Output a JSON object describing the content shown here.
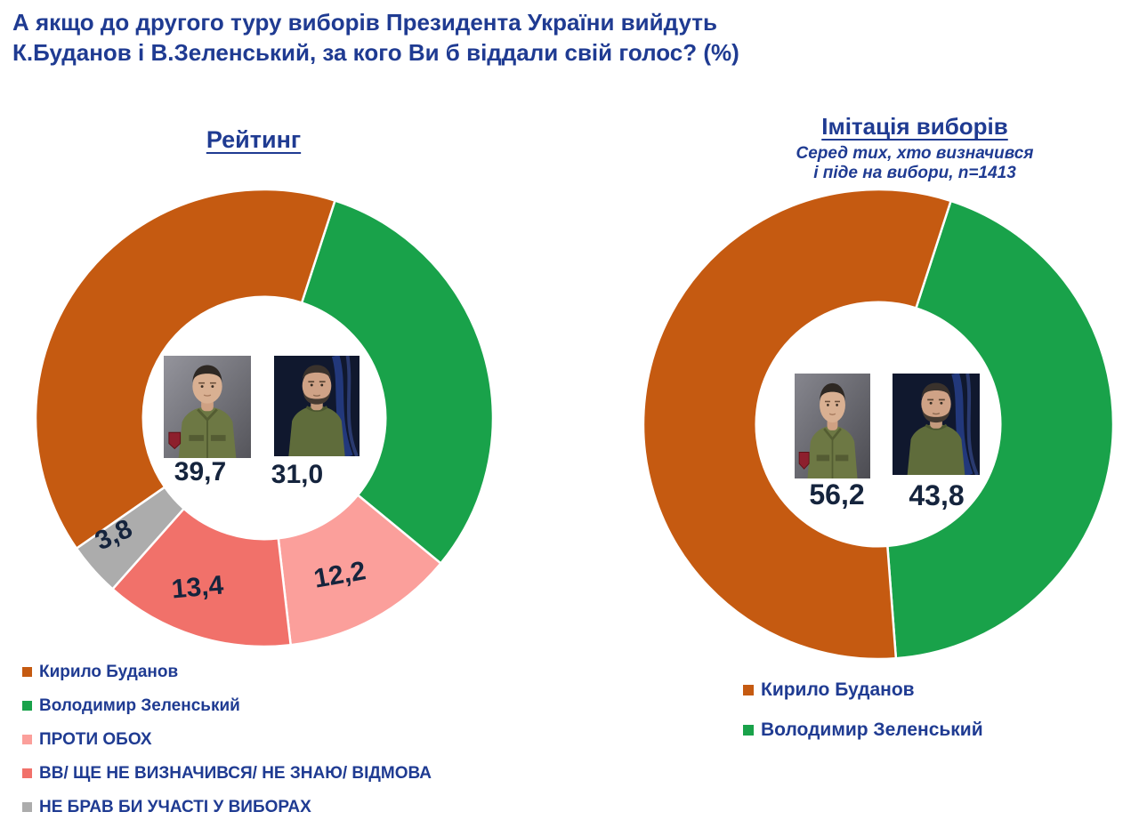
{
  "page": {
    "title_line1": "А якщо до другого туру виборів Президента України вийдуть",
    "title_line2": "К.Буданов і В.Зеленський, за кого Ви б віддали свій голос? (%)"
  },
  "colors": {
    "heading_blue": "#1F3B92",
    "value_navy": "#15243D",
    "budanov_orange": "#C55A11",
    "zelenskyy_green": "#19A24A",
    "against_both_pink": "#FB9F9B",
    "undecided_salmon": "#F1716A",
    "no_participation_gray": "#ACACAC"
  },
  "chart_data": [
    {
      "type": "pie",
      "variant": "donut",
      "title": "Рейтинг",
      "unit": "%",
      "slices": [
        {
          "label": "Кирило Буданов",
          "value": 39.7,
          "display": "39,7",
          "color": "#C55A11"
        },
        {
          "label": "Володимир Зеленський",
          "value": 31.0,
          "display": "31,0",
          "color": "#19A24A"
        },
        {
          "label": "ПРОТИ ОБОХ",
          "value": 12.2,
          "display": "12,2",
          "color": "#FB9F9B"
        },
        {
          "label": "ВВ/ ЩЕ НЕ ВИЗНАЧИВСЯ/ НЕ ЗНАЮ/ ВІДМОВА",
          "value": 13.4,
          "display": "13,4",
          "color": "#F1716A"
        },
        {
          "label": "НЕ БРАВ БИ УЧАСТІ У ВИБОРАХ",
          "value": 3.8,
          "display": "3,8",
          "color": "#ACACAC"
        }
      ],
      "clockwise_order": [
        1,
        2,
        3,
        4,
        0
      ],
      "start_angle_deg": 18,
      "donut_hole_ratio": 0.53,
      "legend_position": "bottom-left",
      "labels_inside_hole": [
        "39,7",
        "31,0"
      ],
      "labels_on_slices": [
        "12,2",
        "13,4",
        "3,8"
      ]
    },
    {
      "type": "pie",
      "variant": "donut",
      "title": "Імітація виборів",
      "subtitle_line1": "Серед тих, хто визначився",
      "subtitle_line2": "і піде на вибори, n=1413",
      "sample_size": "n=1413",
      "unit": "%",
      "slices": [
        {
          "label": "Кирило Буданов",
          "value": 56.2,
          "display": "56,2",
          "color": "#C55A11"
        },
        {
          "label": "Володимир Зеленський",
          "value": 43.8,
          "display": "43,8",
          "color": "#19A24A"
        }
      ],
      "clockwise_order": [
        1,
        0
      ],
      "start_angle_deg": 18,
      "donut_hole_ratio": 0.52,
      "legend_position": "bottom",
      "labels_inside_hole": [
        "56,2",
        "43,8"
      ]
    }
  ]
}
